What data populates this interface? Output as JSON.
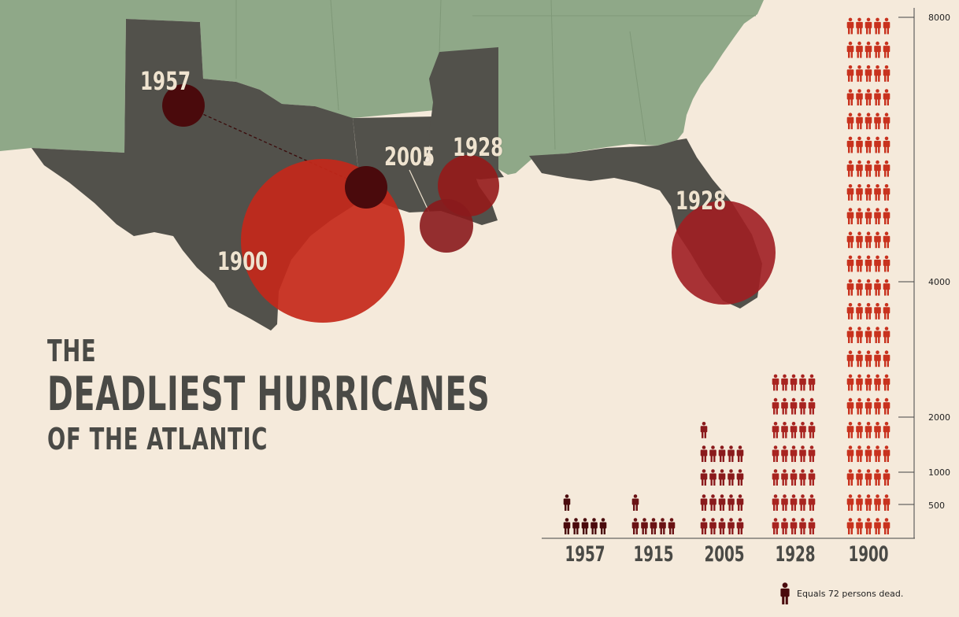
{
  "title": {
    "line1": "THE",
    "line2": "DEADLIEST HURRICANES",
    "line3": "OF THE ATLANTIC"
  },
  "map_labels": {
    "label_1957": "1957",
    "label_1900": "1900",
    "label_2005": "2005",
    "label_1928_la": "1928",
    "label_1928_fl": "1928"
  },
  "colors": {
    "land_us": "#8fa888",
    "land_highlight": "#52514b",
    "background": "#f5eadb",
    "c1957": "#4a0a0c",
    "c1915": "#6a1214",
    "c2005": "#8a1a1c",
    "c1928": "#a82420",
    "c1900": "#c8321e"
  },
  "chart_data": {
    "type": "bar",
    "categories": [
      "1957",
      "1915",
      "2005",
      "1928",
      "1900"
    ],
    "values": [
      416,
      400,
      1500,
      2500,
      8000
    ],
    "yticks": [
      500,
      1000,
      2000,
      4000,
      8000
    ],
    "unit_per_icon": 72
  },
  "legend": {
    "text": "Equals 72 persons dead."
  }
}
